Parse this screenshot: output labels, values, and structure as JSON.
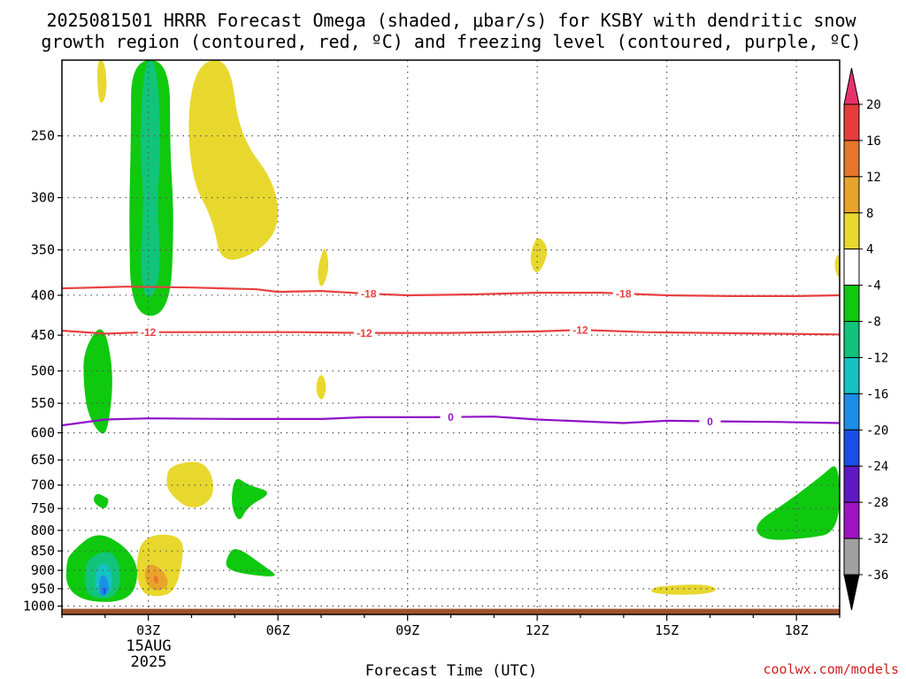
{
  "chart_data": {
    "type": "heatmap",
    "title_line1": "2025081501 HRRR Forecast Omega (shaded, μbar/s) for KSBY with dendritic snow",
    "title_line2": "growth region (contoured, red, ºC) and freezing level (contoured, purple, ºC)",
    "xlabel": "Forecast Time (UTC)",
    "ylabel": "",
    "x_ticks": [
      "03Z",
      "06Z",
      "09Z",
      "12Z",
      "15Z",
      "18Z"
    ],
    "x_date_label": [
      "15AUG",
      "2025"
    ],
    "x_range_hours": [
      1.0,
      19.0
    ],
    "y_ticks": [
      250,
      300,
      350,
      400,
      450,
      500,
      550,
      600,
      650,
      700,
      750,
      800,
      850,
      900,
      950,
      1000
    ],
    "y_range_hpa": [
      1025,
      200
    ],
    "y_scale": "log-pressure",
    "grid": "dotted",
    "colorbar": {
      "labels": [
        "20",
        "16",
        "12",
        "8",
        "4",
        "-4",
        "-8",
        "-12",
        "-16",
        "-20",
        "-24",
        "-28",
        "-32",
        "-36"
      ],
      "colors": [
        "#e8316b",
        "#e83c3c",
        "#e8762a",
        "#e8a42a",
        "#e8d82e",
        "#ffffff",
        "#0ec90e",
        "#10c47a",
        "#14c2c2",
        "#1a8ee8",
        "#1a4ee8",
        "#6018c4",
        "#a012c4",
        "#a0a0a0",
        "#000000"
      ]
    },
    "contour_lines": [
      {
        "level": "-18",
        "color": "#e84040",
        "label_hours": [
          8.1,
          14.0
        ],
        "points": [
          [
            1.0,
            392
          ],
          [
            2.5,
            390
          ],
          [
            4.0,
            391
          ],
          [
            5.5,
            393
          ],
          [
            6.0,
            396
          ],
          [
            7.0,
            395
          ],
          [
            8.0,
            398
          ],
          [
            9.0,
            400
          ],
          [
            10.5,
            399
          ],
          [
            12.0,
            397
          ],
          [
            13.5,
            397
          ],
          [
            15.0,
            400
          ],
          [
            16.5,
            401
          ],
          [
            18.0,
            401
          ],
          [
            19.0,
            400
          ]
        ]
      },
      {
        "level": "-12",
        "color": "#e84040",
        "label_hours": [
          3.0,
          8.0,
          13.0
        ],
        "points": [
          [
            1.0,
            444
          ],
          [
            2.0,
            448
          ],
          [
            3.0,
            446
          ],
          [
            5.0,
            446
          ],
          [
            6.5,
            446
          ],
          [
            8.0,
            447
          ],
          [
            10.0,
            447
          ],
          [
            12.0,
            445
          ],
          [
            13.0,
            443
          ],
          [
            14.5,
            446
          ],
          [
            16.0,
            447
          ],
          [
            19.0,
            449
          ]
        ]
      },
      {
        "level": "0",
        "color": "#9010c8",
        "label_hours": [
          10.0,
          16.0
        ],
        "points": [
          [
            1.0,
            587
          ],
          [
            2.0,
            577
          ],
          [
            3.0,
            575
          ],
          [
            5.0,
            576
          ],
          [
            7.0,
            576
          ],
          [
            8.0,
            573
          ],
          [
            9.5,
            573
          ],
          [
            11.0,
            572
          ],
          [
            12.0,
            577
          ],
          [
            13.0,
            580
          ],
          [
            14.0,
            583
          ],
          [
            15.0,
            579
          ],
          [
            16.0,
            580
          ],
          [
            17.5,
            581
          ],
          [
            19.0,
            583
          ]
        ]
      }
    ],
    "omega_regions": [
      {
        "level": "4",
        "points": [
          [
            1.8,
            200
          ],
          [
            2.0,
            200
          ],
          [
            2.05,
            222
          ],
          [
            1.85,
            230
          ]
        ]
      },
      {
        "level": "4",
        "points": [
          [
            4.2,
            200
          ],
          [
            4.9,
            200
          ],
          [
            5.1,
            250
          ],
          [
            6.0,
            290
          ],
          [
            6.0,
            340
          ],
          [
            4.7,
            370
          ],
          [
            4.5,
            320
          ],
          [
            4.0,
            285
          ],
          [
            3.9,
            230
          ]
        ]
      },
      {
        "level": "4",
        "points": [
          [
            7.0,
            355
          ],
          [
            7.1,
            345
          ],
          [
            7.2,
            370
          ],
          [
            7.0,
            395
          ],
          [
            6.9,
            375
          ]
        ]
      },
      {
        "level": "4",
        "points": [
          [
            12.0,
            333
          ],
          [
            12.3,
            350
          ],
          [
            12.0,
            380
          ],
          [
            11.8,
            360
          ]
        ]
      },
      {
        "level": "4",
        "points": [
          [
            19.0,
            350
          ],
          [
            19.0,
            385
          ],
          [
            18.85,
            365
          ]
        ]
      },
      {
        "level": "4",
        "points": [
          [
            7.0,
            500
          ],
          [
            7.15,
            525
          ],
          [
            7.0,
            550
          ],
          [
            6.85,
            525
          ]
        ]
      },
      {
        "level": "4",
        "points": [
          [
            3.5,
            660
          ],
          [
            4.2,
            650
          ],
          [
            4.5,
            680
          ],
          [
            4.5,
            730
          ],
          [
            4.0,
            755
          ],
          [
            3.5,
            720
          ],
          [
            3.4,
            690
          ]
        ]
      },
      {
        "level": "4",
        "points": [
          [
            2.9,
            810
          ],
          [
            3.8,
            810
          ],
          [
            3.8,
            880
          ],
          [
            3.6,
            960
          ],
          [
            3.2,
            975
          ],
          [
            2.8,
            960
          ],
          [
            2.7,
            880
          ]
        ]
      },
      {
        "level": "4",
        "points": [
          [
            14.7,
            944
          ],
          [
            15.5,
            938
          ],
          [
            16.0,
            940
          ],
          [
            16.2,
            955
          ],
          [
            15.8,
            967
          ],
          [
            15.0,
            967
          ],
          [
            14.6,
            960
          ]
        ]
      },
      {
        "level": "8",
        "points": [
          [
            3.05,
            880
          ],
          [
            3.35,
            900
          ],
          [
            3.5,
            940
          ],
          [
            3.2,
            960
          ],
          [
            2.95,
            940
          ],
          [
            2.9,
            900
          ]
        ]
      },
      {
        "level": "12",
        "points": [
          [
            3.15,
            910
          ],
          [
            3.25,
            925
          ],
          [
            3.2,
            940
          ],
          [
            3.1,
            925
          ]
        ]
      },
      {
        "level": "-4",
        "points": [
          [
            2.6,
            200
          ],
          [
            3.5,
            200
          ],
          [
            3.5,
            260
          ],
          [
            3.6,
            320
          ],
          [
            3.5,
            425
          ],
          [
            2.6,
            425
          ],
          [
            2.55,
            320
          ],
          [
            2.6,
            250
          ]
        ]
      },
      {
        "level": "-8",
        "points": [
          [
            2.9,
            200
          ],
          [
            3.2,
            200
          ],
          [
            3.3,
            260
          ],
          [
            3.2,
            300
          ],
          [
            3.3,
            380
          ],
          [
            3.0,
            410
          ],
          [
            2.8,
            380
          ],
          [
            2.9,
            300
          ],
          [
            2.8,
            260
          ]
        ]
      },
      {
        "level": "-4",
        "points": [
          [
            1.5,
            470
          ],
          [
            1.95,
            430
          ],
          [
            2.2,
            500
          ],
          [
            2.1,
            580
          ],
          [
            1.95,
            610
          ],
          [
            1.6,
            570
          ],
          [
            1.5,
            520
          ]
        ]
      },
      {
        "level": "-4",
        "points": [
          [
            1.8,
            715
          ],
          [
            2.0,
            725
          ],
          [
            2.1,
            730
          ],
          [
            2.0,
            755
          ],
          [
            1.7,
            735
          ]
        ]
      },
      {
        "level": "-4",
        "points": [
          [
            5.0,
            680
          ],
          [
            5.3,
            700
          ],
          [
            5.9,
            715
          ],
          [
            5.3,
            745
          ],
          [
            5.1,
            785
          ],
          [
            4.9,
            740
          ]
        ]
      },
      {
        "level": "-4",
        "points": [
          [
            5.0,
            835
          ],
          [
            5.7,
            890
          ],
          [
            6.05,
            920
          ],
          [
            5.2,
            910
          ],
          [
            4.8,
            895
          ],
          [
            4.8,
            870
          ]
        ]
      },
      {
        "level": "-4",
        "points": [
          [
            1.2,
            855
          ],
          [
            1.8,
            800
          ],
          [
            2.5,
            840
          ],
          [
            2.8,
            900
          ],
          [
            2.6,
            985
          ],
          [
            1.6,
            990
          ],
          [
            1.1,
            950
          ],
          [
            1.1,
            880
          ]
        ]
      },
      {
        "level": "-8",
        "points": [
          [
            1.6,
            865
          ],
          [
            2.2,
            845
          ],
          [
            2.4,
            920
          ],
          [
            2.2,
            980
          ],
          [
            1.6,
            975
          ],
          [
            1.5,
            920
          ]
        ]
      },
      {
        "level": "-12",
        "points": [
          [
            1.8,
            885
          ],
          [
            2.1,
            880
          ],
          [
            2.2,
            940
          ],
          [
            2.0,
            975
          ],
          [
            1.75,
            955
          ]
        ]
      },
      {
        "level": "-16",
        "points": [
          [
            1.9,
            910
          ],
          [
            2.05,
            920
          ],
          [
            2.1,
            960
          ],
          [
            1.9,
            975
          ],
          [
            1.85,
            950
          ]
        ]
      },
      {
        "level": "-20",
        "points": [
          [
            1.97,
            945
          ],
          [
            2.02,
            950
          ],
          [
            2.0,
            970
          ],
          [
            1.95,
            960
          ]
        ]
      },
      {
        "level": "-4",
        "points": [
          [
            17.0,
            785
          ],
          [
            17.8,
            735
          ],
          [
            18.6,
            680
          ],
          [
            19.0,
            650
          ],
          [
            19.0,
            805
          ],
          [
            18.2,
            820
          ],
          [
            17.2,
            825
          ]
        ]
      }
    ],
    "terrain": {
      "color": "#a0522d",
      "pressure_top": 1008
    }
  },
  "credit": "coolwx.com/models"
}
